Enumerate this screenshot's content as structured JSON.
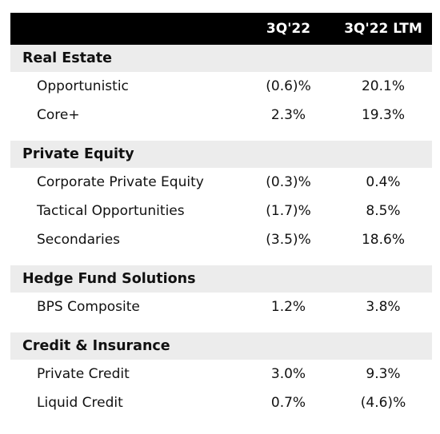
{
  "header": {
    "col1": "3Q'22",
    "col2": "3Q'22 LTM"
  },
  "sections": [
    {
      "title": "Real Estate",
      "rows": [
        {
          "label": "Opportunistic",
          "q": "(0.6)%",
          "ltm": "20.1%"
        },
        {
          "label": "Core+",
          "q": "2.3%",
          "ltm": "19.3%"
        }
      ]
    },
    {
      "title": "Private Equity",
      "rows": [
        {
          "label": "Corporate Private Equity",
          "q": "(0.3)%",
          "ltm": "0.4%"
        },
        {
          "label": "Tactical Opportunities",
          "q": "(1.7)%",
          "ltm": "8.5%"
        },
        {
          "label": "Secondaries",
          "q": "(3.5)%",
          "ltm": "18.6%"
        }
      ]
    },
    {
      "title": "Hedge Fund Solutions",
      "rows": [
        {
          "label": "BPS Composite",
          "q": "1.2%",
          "ltm": "3.8%"
        }
      ]
    },
    {
      "title": "Credit & Insurance",
      "rows": [
        {
          "label": "Private Credit",
          "q": "3.0%",
          "ltm": "9.3%"
        },
        {
          "label": "Liquid Credit",
          "q": "0.7%",
          "ltm": "(4.6)%"
        }
      ]
    }
  ]
}
